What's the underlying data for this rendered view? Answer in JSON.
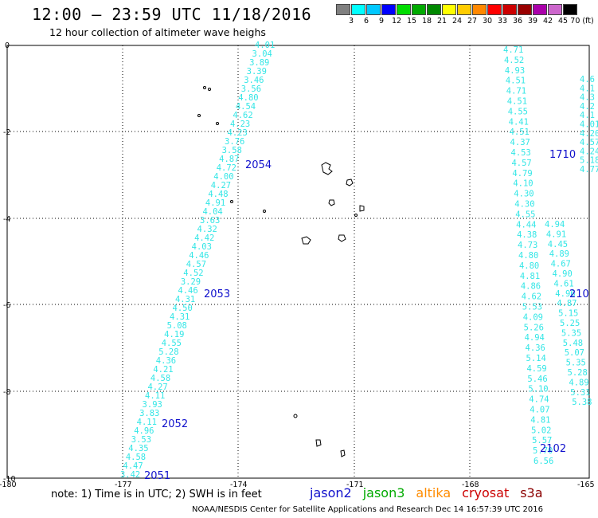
{
  "title": "12:00 – 23:59 UTC 11/18/2016",
  "subtitle": "12 hour collection of altimeter wave heighs",
  "legend": {
    "colors": [
      "#808080",
      "#00ffff",
      "#00c8ff",
      "#0000ff",
      "#00dd00",
      "#00aa00",
      "#008800",
      "#ffff00",
      "#ffcc00",
      "#ff8800",
      "#ff0000",
      "#cc0000",
      "#990000",
      "#aa00aa",
      "#cc66cc",
      "#000000"
    ],
    "labels": [
      "3",
      "6",
      "9",
      "12",
      "15",
      "18",
      "21",
      "24",
      "27",
      "30",
      "33",
      "36",
      "39",
      "42",
      "45",
      "70 (ft)"
    ]
  },
  "axes": {
    "y_ticks": [
      "0",
      "-2",
      "-4",
      "-6",
      "-8",
      "-10"
    ],
    "x_ticks": [
      "-180",
      "-177",
      "-174",
      "-171",
      "-168",
      "-165"
    ]
  },
  "tracks": {
    "left": [
      "4.01",
      "3.04",
      "3.89",
      "3.39",
      "3.46",
      "3.56",
      "4.80",
      "4.54",
      "4.62",
      "4.23",
      "4.23",
      "3.76",
      "3.58",
      "4.87",
      "4.72",
      "4.00",
      "4.27",
      "4.48",
      "4.91",
      "4.04",
      "3.63",
      "4.32",
      "4.42",
      "4.03",
      "4.46",
      "4.57",
      "4.52",
      "3.29",
      "4.46",
      "4.31",
      "4.50",
      "4.31",
      "5.08",
      "4.19",
      "4.55",
      "5.28",
      "4.36",
      "4.21",
      "4.58",
      "4.27",
      "4.11",
      "3.93",
      "3.83",
      "4.11",
      "4.96",
      "3.53",
      "4.35",
      "4.58",
      "4.47",
      "3.42"
    ],
    "right_a": [
      "4.71",
      "4.52",
      "4.93",
      "4.51",
      "4.71",
      "4.51",
      "4.55",
      "4.41",
      "4.51",
      "4.37",
      "4.53",
      "4.57",
      "4.79",
      "4.10",
      "4.30",
      "4.30",
      "4.55",
      "4.44",
      "4.38",
      "4.73",
      "4.80",
      "4.80",
      "4.81",
      "4.86",
      "4.62",
      "5.53",
      "4.09",
      "5.26",
      "4.94",
      "4.36",
      "5.14",
      "4.59",
      "5.46",
      "5.10",
      "4.74",
      "4.07",
      "4.81",
      "5.02",
      "5.57",
      "5.70",
      "6.56"
    ],
    "right_b": [
      "4.94",
      "4.91",
      "4.45",
      "4.89",
      "4.67",
      "4.90",
      "4.61",
      "4.96",
      "4.87",
      "5.15",
      "5.25",
      "5.35",
      "5.48",
      "5.07",
      "5.35",
      "5.28",
      "4.89",
      "5.31",
      "5.38"
    ],
    "edge": [
      "4.6",
      "4.1",
      "4.3",
      "4.2",
      "4.1",
      "4.01",
      "4.20",
      "4.57",
      "4.24",
      "5.18",
      "4.77"
    ]
  },
  "pass_labels": [
    {
      "text": "2054",
      "color": "#1010cc"
    },
    {
      "text": "2053",
      "color": "#1010cc"
    },
    {
      "text": "2052",
      "color": "#1010cc"
    },
    {
      "text": "2051",
      "color": "#1010cc"
    },
    {
      "text": "1710",
      "color": "#ff8c00"
    },
    {
      "text": "2102",
      "color": "#8b0000"
    },
    {
      "text": "210",
      "color": "#8b0000"
    }
  ],
  "note": "note: 1) Time is in UTC; 2) SWH is in feet",
  "satellites": [
    {
      "name": "jason2",
      "color": "#1010cc"
    },
    {
      "name": "jason3",
      "color": "#00aa00"
    },
    {
      "name": "altika",
      "color": "#ff8c00"
    },
    {
      "name": "cryosat",
      "color": "#cc0000"
    },
    {
      "name": "s3a",
      "color": "#8b0000"
    }
  ],
  "footer": "NOAA/NESDIS Center for Satellite Applications and Research    Dec 14 16:57:39 UTC 2016"
}
